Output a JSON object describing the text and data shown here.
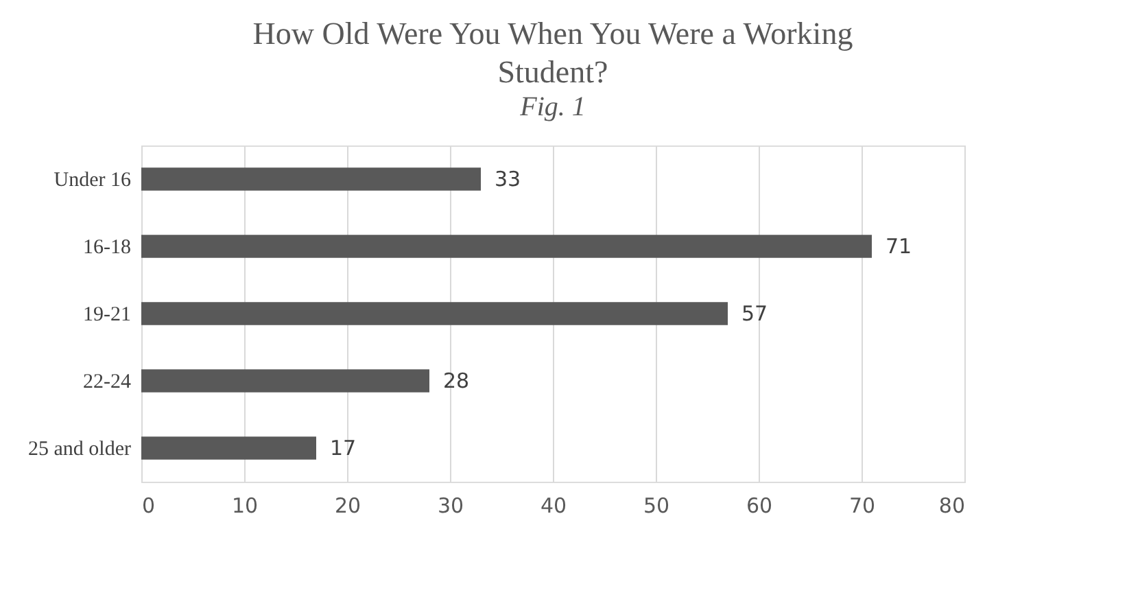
{
  "chart_data": {
    "type": "bar",
    "orientation": "horizontal",
    "title": "How Old Were You When You Were a Working Student?",
    "subtitle": "Fig. 1",
    "categories": [
      "Under 16",
      "16-18",
      "19-21",
      "22-24",
      "25 and older"
    ],
    "values": [
      33,
      71,
      57,
      28,
      17
    ],
    "color": "#595959",
    "xlim": [
      0,
      80
    ],
    "xticks": [
      0,
      10,
      20,
      30,
      40,
      50,
      60,
      70,
      80
    ],
    "grid": "x",
    "data_labels": true
  }
}
